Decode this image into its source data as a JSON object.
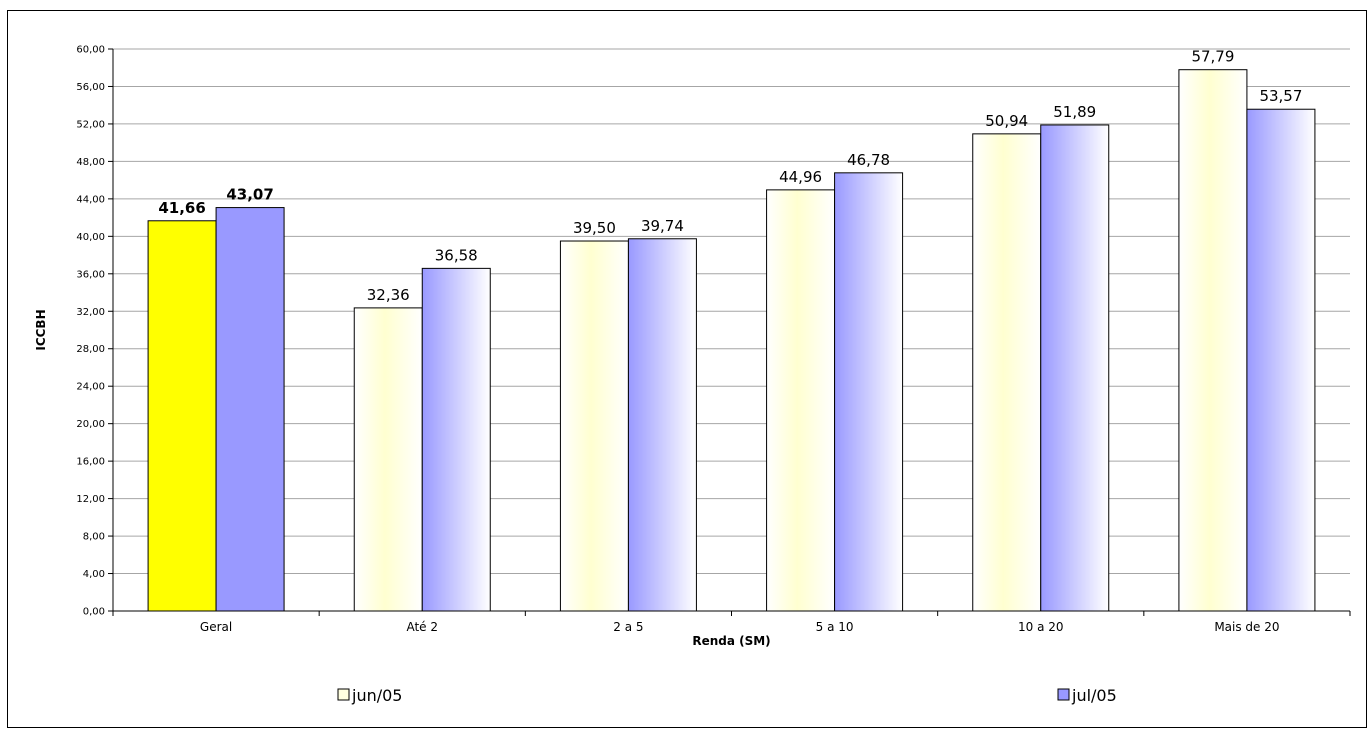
{
  "chart_data": {
    "type": "bar",
    "categories": [
      "Geral",
      "Até 2",
      "2 a 5",
      "5 a 10",
      "10 a 20",
      "Mais de 20"
    ],
    "series": [
      {
        "name": "jun/05",
        "values": [
          41.66,
          32.36,
          39.5,
          44.96,
          50.94,
          57.79
        ],
        "value_labels": [
          "41,66",
          "32,36",
          "39,50",
          "44,96",
          "50,94",
          "57,79"
        ],
        "color": "#ffffe0",
        "highlight_color": "#ffff00"
      },
      {
        "name": "jul/05",
        "values": [
          43.07,
          36.58,
          39.74,
          46.78,
          51.89,
          53.57
        ],
        "value_labels": [
          "43,07",
          "36,58",
          "39,74",
          "46,78",
          "51,89",
          "53,57"
        ],
        "color": "#9999ff",
        "highlight_color": "#9999ff"
      }
    ],
    "xlabel": "Renda (SM)",
    "ylabel": "ICCBH",
    "ylim": [
      0,
      60
    ],
    "yticks": [
      0,
      4,
      8,
      12,
      16,
      20,
      24,
      28,
      32,
      36,
      40,
      44,
      48,
      52,
      56,
      60
    ],
    "ytick_labels": [
      "0,00",
      "4,00",
      "8,00",
      "12,00",
      "16,00",
      "20,00",
      "24,00",
      "28,00",
      "32,00",
      "36,00",
      "40,00",
      "44,00",
      "48,00",
      "52,00",
      "56,00",
      "60,00"
    ],
    "grid": true,
    "legend_position": "bottom",
    "highlight_category": "Geral"
  }
}
